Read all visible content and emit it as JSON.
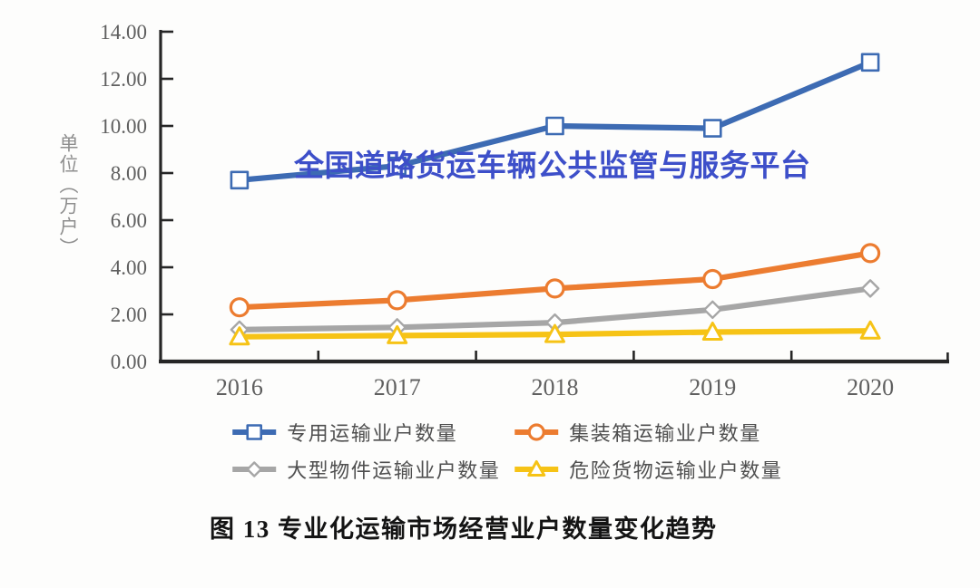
{
  "watermark": {
    "text": "全国道路货运车辆公共监管与服务平台",
    "color": "#3d4fc9"
  },
  "caption": "图 13 专业化运输市场经营业户数量变化趋势",
  "chart_data": {
    "type": "line",
    "title": "",
    "xlabel": "",
    "ylabel": "单位（万户）",
    "categories": [
      "2016",
      "2017",
      "2018",
      "2019",
      "2020"
    ],
    "y_ticks": [
      "0.00",
      "2.00",
      "4.00",
      "6.00",
      "8.00",
      "10.00",
      "12.00",
      "14.00"
    ],
    "ylim": [
      0,
      14
    ],
    "grid": false,
    "legend_position": "bottom",
    "axis_color": "#262626",
    "tick_label_color": "#5f5f5f",
    "series": [
      {
        "name": "专用运输业户数量",
        "marker": "square",
        "color": "#3d6bb3",
        "values": [
          7.7,
          8.3,
          10.0,
          9.9,
          12.7
        ]
      },
      {
        "name": "集装箱运输业户数量",
        "marker": "circle",
        "color": "#ec7c30",
        "values": [
          2.3,
          2.6,
          3.1,
          3.5,
          4.6
        ]
      },
      {
        "name": "大型物件运输业户数量",
        "marker": "diamond",
        "color": "#a6a6a6",
        "values": [
          1.35,
          1.45,
          1.65,
          2.2,
          3.1
        ]
      },
      {
        "name": "危险货物运输业户数量",
        "marker": "triangle",
        "color": "#f6c316",
        "values": [
          1.05,
          1.1,
          1.15,
          1.25,
          1.3
        ]
      }
    ]
  }
}
